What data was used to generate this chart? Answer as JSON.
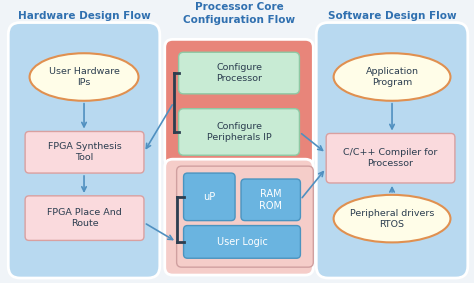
{
  "title_left": "Hardware Design Flow",
  "title_center": "Processor Core\nConfiguration Flow",
  "title_right": "Software Design Flow",
  "bg_color": "#f0f4f8",
  "panel_blue": "#b8d9f0",
  "panel_pink_dark": "#e8857a",
  "panel_pink_light": "#f5cdc9",
  "box_green_face": "#c8ebd4",
  "box_green_edge": "#8ec9a4",
  "box_blue_face": "#6ab4e0",
  "box_blue_edge": "#4a94c0",
  "box_pink_face": "#fadadd",
  "box_pink_edge": "#d9a0a0",
  "ellipse_face": "#fffde8",
  "ellipse_edge": "#e09050",
  "text_title": "#3070b0",
  "text_dark": "#2c3e50",
  "text_white": "#ffffff",
  "arrow_color": "#5090c0",
  "bracket_color": "#2c3e50"
}
